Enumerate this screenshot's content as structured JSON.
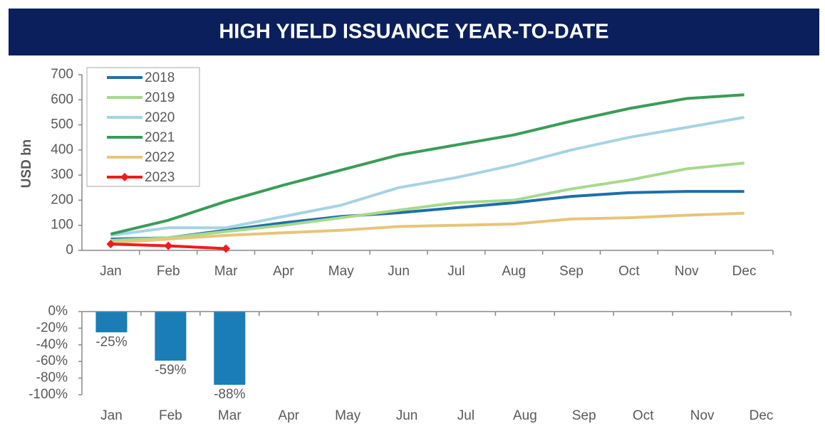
{
  "chart_data": [
    {
      "type": "line",
      "title": "HIGH YIELD ISSUANCE YEAR-TO-DATE",
      "y_label": "USD bn",
      "categories": [
        "Jan",
        "Feb",
        "Mar",
        "Apr",
        "May",
        "Jun",
        "Jul",
        "Aug",
        "Sep",
        "Oct",
        "Nov",
        "Dec"
      ],
      "ylim": [
        0,
        700
      ],
      "yticks": [
        0,
        100,
        200,
        300,
        400,
        500,
        600,
        700
      ],
      "grid": false,
      "legend": "upper left",
      "series": [
        {
          "name": "2018",
          "color": "#1f6fa8",
          "values": [
            45,
            50,
            80,
            110,
            135,
            150,
            170,
            190,
            215,
            230,
            235,
            235
          ]
        },
        {
          "name": "2019",
          "color": "#a6d98c",
          "values": [
            40,
            50,
            75,
            100,
            130,
            160,
            190,
            200,
            245,
            280,
            325,
            348
          ]
        },
        {
          "name": "2020",
          "color": "#a7d3e3",
          "values": [
            60,
            90,
            90,
            135,
            180,
            250,
            290,
            340,
            400,
            450,
            490,
            530
          ]
        },
        {
          "name": "2021",
          "color": "#3a9c57",
          "values": [
            65,
            120,
            195,
            260,
            320,
            380,
            420,
            460,
            515,
            565,
            605,
            620
          ]
        },
        {
          "name": "2022",
          "color": "#e8c47a",
          "values": [
            30,
            45,
            60,
            70,
            80,
            95,
            100,
            105,
            125,
            130,
            140,
            148
          ]
        },
        {
          "name": "2023",
          "color": "#ee1c1c",
          "marker": "diamond",
          "values": [
            25,
            18,
            7,
            null,
            null,
            null,
            null,
            null,
            null,
            null,
            null,
            null
          ]
        }
      ]
    },
    {
      "type": "bar",
      "categories": [
        "Jan",
        "Feb",
        "Mar",
        "Apr",
        "May",
        "Jun",
        "Jul",
        "Aug",
        "Sep",
        "Oct",
        "Nov",
        "Dec"
      ],
      "values": [
        -25,
        -59,
        -88,
        null,
        null,
        null,
        null,
        null,
        null,
        null,
        null,
        null
      ],
      "value_labels": [
        "-25%",
        "-59%",
        "-88%",
        null,
        null,
        null,
        null,
        null,
        null,
        null,
        null,
        null
      ],
      "color": "#1a7db5",
      "ylim": [
        -100,
        0
      ],
      "grid": false,
      "yticks": [
        {
          "value": 0,
          "label": "0%"
        },
        {
          "value": -20,
          "label": "-20%"
        },
        {
          "value": -40,
          "label": "-40%"
        },
        {
          "value": -60,
          "label": "-60%"
        },
        {
          "value": -80,
          "label": "-80%"
        },
        {
          "value": -100,
          "label": "-100%"
        }
      ]
    }
  ]
}
